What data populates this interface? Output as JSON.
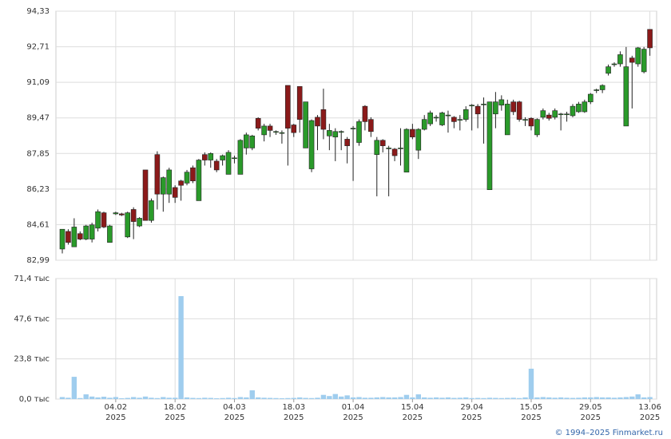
{
  "chart_data": {
    "type": "candlestick",
    "categories": [
      null,
      null,
      null,
      null,
      null,
      null,
      null,
      null,
      null,
      "04.02\n2025",
      null,
      null,
      null,
      null,
      null,
      null,
      null,
      null,
      null,
      "18.02\n2025",
      null,
      null,
      null,
      null,
      null,
      null,
      null,
      null,
      null,
      "04.03\n2025",
      null,
      null,
      null,
      null,
      null,
      null,
      null,
      null,
      null,
      "18.03\n2025",
      null,
      null,
      null,
      null,
      null,
      null,
      null,
      null,
      null,
      "01.04\n2025",
      null,
      null,
      null,
      null,
      null,
      null,
      null,
      null,
      null,
      "15.04\n2025",
      null,
      null,
      null,
      null,
      null,
      null,
      null,
      null,
      null,
      "29.04\n2025",
      null,
      null,
      null,
      null,
      null,
      null,
      null,
      null,
      null,
      "15.05\n2025",
      null,
      null,
      null,
      null,
      null,
      null,
      null,
      null,
      null,
      "29.05\n2025",
      null,
      null,
      null,
      null,
      null,
      null,
      null,
      null,
      null,
      "13.06\n2025"
    ],
    "open": [
      83.5,
      84.3,
      83.6,
      84.2,
      83.95,
      83.95,
      84.45,
      85.15,
      83.8,
      85.1,
      85.1,
      84.05,
      85.3,
      84.55,
      87.1,
      84.8,
      87.8,
      86.0,
      86.0,
      86.3,
      86.6,
      86.5,
      87.2,
      85.7,
      87.8,
      87.55,
      87.5,
      87.55,
      86.9,
      87.65,
      86.9,
      88.1,
      88.1,
      89.45,
      88.7,
      89.1,
      88.85,
      88.8,
      90.95,
      89.15,
      90.9,
      88.1,
      87.15,
      89.5,
      89.85,
      88.65,
      88.6,
      88.85,
      88.5,
      89.0,
      88.35,
      90.0,
      89.4,
      87.8,
      88.45,
      88.1,
      88.05,
      88.1,
      87.0,
      88.95,
      88.0,
      88.95,
      89.2,
      89.5,
      89.15,
      89.6,
      89.5,
      89.4,
      89.4,
      90.05,
      90.0,
      90.1,
      86.2,
      89.65,
      90.05,
      88.7,
      90.2,
      90.2,
      89.4,
      89.45,
      88.7,
      89.5,
      89.6,
      89.5,
      89.65,
      89.65,
      89.57,
      89.75,
      89.75,
      90.2,
      90.75,
      90.75,
      91.5,
      91.93,
      91.93,
      89.1,
      92.2,
      91.93,
      91.57,
      93.5
    ],
    "high": [
      84.4,
      84.4,
      84.9,
      84.3,
      84.6,
      84.7,
      85.3,
      85.2,
      84.6,
      85.2,
      85.15,
      85.2,
      85.4,
      84.95,
      87.1,
      85.8,
      87.95,
      86.8,
      87.2,
      86.4,
      86.65,
      87.1,
      87.3,
      87.6,
      87.9,
      87.9,
      87.6,
      87.8,
      88.0,
      87.75,
      88.5,
      88.8,
      88.7,
      89.5,
      89.2,
      89.2,
      88.9,
      88.9,
      90.95,
      89.2,
      90.9,
      90.2,
      89.4,
      89.6,
      90.8,
      89.2,
      89.0,
      88.9,
      88.6,
      89.1,
      89.4,
      90.05,
      89.5,
      88.6,
      88.5,
      88.2,
      88.1,
      89.0,
      89.0,
      89.2,
      89.0,
      89.6,
      89.8,
      89.6,
      89.75,
      89.8,
      89.55,
      89.6,
      90.0,
      90.1,
      90.1,
      90.4,
      90.2,
      90.65,
      90.5,
      90.3,
      90.3,
      90.25,
      89.5,
      89.5,
      89.45,
      89.9,
      89.7,
      89.9,
      89.7,
      89.75,
      90.1,
      90.2,
      90.3,
      90.6,
      90.8,
      91.0,
      91.9,
      92.0,
      92.5,
      92.7,
      92.3,
      92.7,
      92.7,
      93.5
    ],
    "low": [
      83.3,
      83.7,
      83.6,
      83.9,
      83.9,
      83.8,
      84.3,
      84.45,
      83.8,
      85.05,
      85.0,
      84.0,
      83.95,
      84.5,
      84.8,
      84.7,
      85.3,
      85.2,
      85.6,
      85.6,
      85.7,
      86.4,
      86.5,
      85.7,
      87.3,
      87.2,
      87.0,
      87.3,
      86.9,
      87.4,
      86.9,
      87.8,
      88.0,
      88.9,
      88.4,
      88.6,
      88.7,
      88.3,
      87.3,
      88.6,
      88.8,
      88.1,
      87.0,
      88.0,
      88.5,
      88.0,
      87.5,
      88.0,
      87.4,
      86.6,
      88.2,
      88.9,
      88.6,
      85.9,
      87.9,
      85.9,
      87.5,
      87.3,
      87.0,
      88.5,
      87.6,
      88.9,
      89.1,
      89.3,
      89.1,
      88.8,
      89.0,
      88.9,
      89.3,
      88.9,
      89.0,
      88.3,
      86.2,
      89.0,
      89.8,
      88.7,
      89.6,
      89.3,
      89.1,
      88.9,
      88.6,
      89.4,
      89.35,
      89.4,
      88.9,
      89.3,
      89.5,
      89.7,
      89.7,
      90.1,
      90.6,
      90.6,
      91.4,
      91.8,
      91.8,
      89.1,
      89.9,
      91.8,
      91.5,
      92.3
    ],
    "close": [
      84.4,
      83.8,
      84.5,
      83.95,
      84.55,
      84.6,
      85.2,
      84.5,
      84.55,
      85.15,
      85.05,
      85.15,
      84.75,
      84.9,
      84.8,
      85.7,
      86.0,
      86.75,
      87.1,
      85.85,
      86.4,
      87.0,
      86.6,
      87.55,
      87.55,
      87.85,
      87.1,
      87.75,
      87.9,
      87.65,
      88.45,
      88.7,
      88.65,
      89.0,
      89.1,
      88.9,
      88.85,
      88.8,
      89.0,
      88.8,
      89.4,
      90.2,
      89.35,
      89.1,
      88.95,
      88.9,
      88.85,
      88.85,
      88.2,
      89.0,
      89.3,
      89.3,
      88.85,
      88.45,
      88.2,
      88.1,
      87.75,
      88.1,
      88.95,
      88.6,
      88.95,
      89.4,
      89.7,
      89.5,
      89.7,
      89.6,
      89.3,
      89.4,
      89.85,
      90.05,
      89.65,
      90.1,
      90.2,
      90.2,
      90.3,
      90.1,
      89.75,
      89.4,
      89.4,
      89.1,
      89.4,
      89.8,
      89.45,
      89.8,
      89.65,
      89.65,
      90.0,
      90.1,
      90.2,
      90.55,
      90.75,
      90.95,
      91.8,
      91.93,
      92.35,
      91.8,
      92.0,
      92.66,
      92.6,
      92.66
    ],
    "volume": [
      1.2,
      0.8,
      13.2,
      0.6,
      2.8,
      1.5,
      1.0,
      1.4,
      0.8,
      1.2,
      0.5,
      0.7,
      1.2,
      0.8,
      1.5,
      0.8,
      0.6,
      1.2,
      0.8,
      0.8,
      61.0,
      1.0,
      0.7,
      0.6,
      0.8,
      0.7,
      0.5,
      0.6,
      0.8,
      0.6,
      1.2,
      1.0,
      5.2,
      1.0,
      0.8,
      0.7,
      0.6,
      0.5,
      0.6,
      0.7,
      1.0,
      0.7,
      0.6,
      0.8,
      2.5,
      1.8,
      3.0,
      1.5,
      2.2,
      1.0,
      1.2,
      0.8,
      0.8,
      1.0,
      1.2,
      1.0,
      1.0,
      1.2,
      2.5,
      1.0,
      2.8,
      1.0,
      0.8,
      1.0,
      0.8,
      1.0,
      0.7,
      0.8,
      1.0,
      0.6,
      0.7,
      0.6,
      0.8,
      0.7,
      0.6,
      0.7,
      0.8,
      0.6,
      1.0,
      18.0,
      1.0,
      1.2,
      1.0,
      0.8,
      1.0,
      0.8,
      0.7,
      0.8,
      1.0,
      1.0,
      1.2,
      1.0,
      1.0,
      0.8,
      1.0,
      1.2,
      1.5,
      2.8,
      1.0,
      1.2
    ],
    "up_color": "#2a9a2a",
    "down_color": "#8b1a1a",
    "volume_color": "#9fcdee",
    "grid": true,
    "ylim": [
      82.99,
      94.33
    ],
    "yticks": [
      {
        "value": 82.99,
        "label": "82,99"
      },
      {
        "value": 84.61,
        "label": "84,61"
      },
      {
        "value": 86.23,
        "label": "86,23"
      },
      {
        "value": 87.85,
        "label": "87,85"
      },
      {
        "value": 89.47,
        "label": "89,47"
      },
      {
        "value": 91.09,
        "label": "91,09"
      },
      {
        "value": 92.71,
        "label": "92,71"
      },
      {
        "value": 94.33,
        "label": "94,33"
      }
    ],
    "y2lim": [
      0,
      71.4
    ],
    "y2ticks": [
      {
        "value": 0,
        "label": "0,0 тыс"
      },
      {
        "value": 23.8,
        "label": "23,8 тыс"
      },
      {
        "value": 47.6,
        "label": "47,6 тыс"
      },
      {
        "value": 71.4,
        "label": "71,4 тыс"
      }
    ],
    "copyright": "© 1994–2025 Finmarket.ru"
  }
}
